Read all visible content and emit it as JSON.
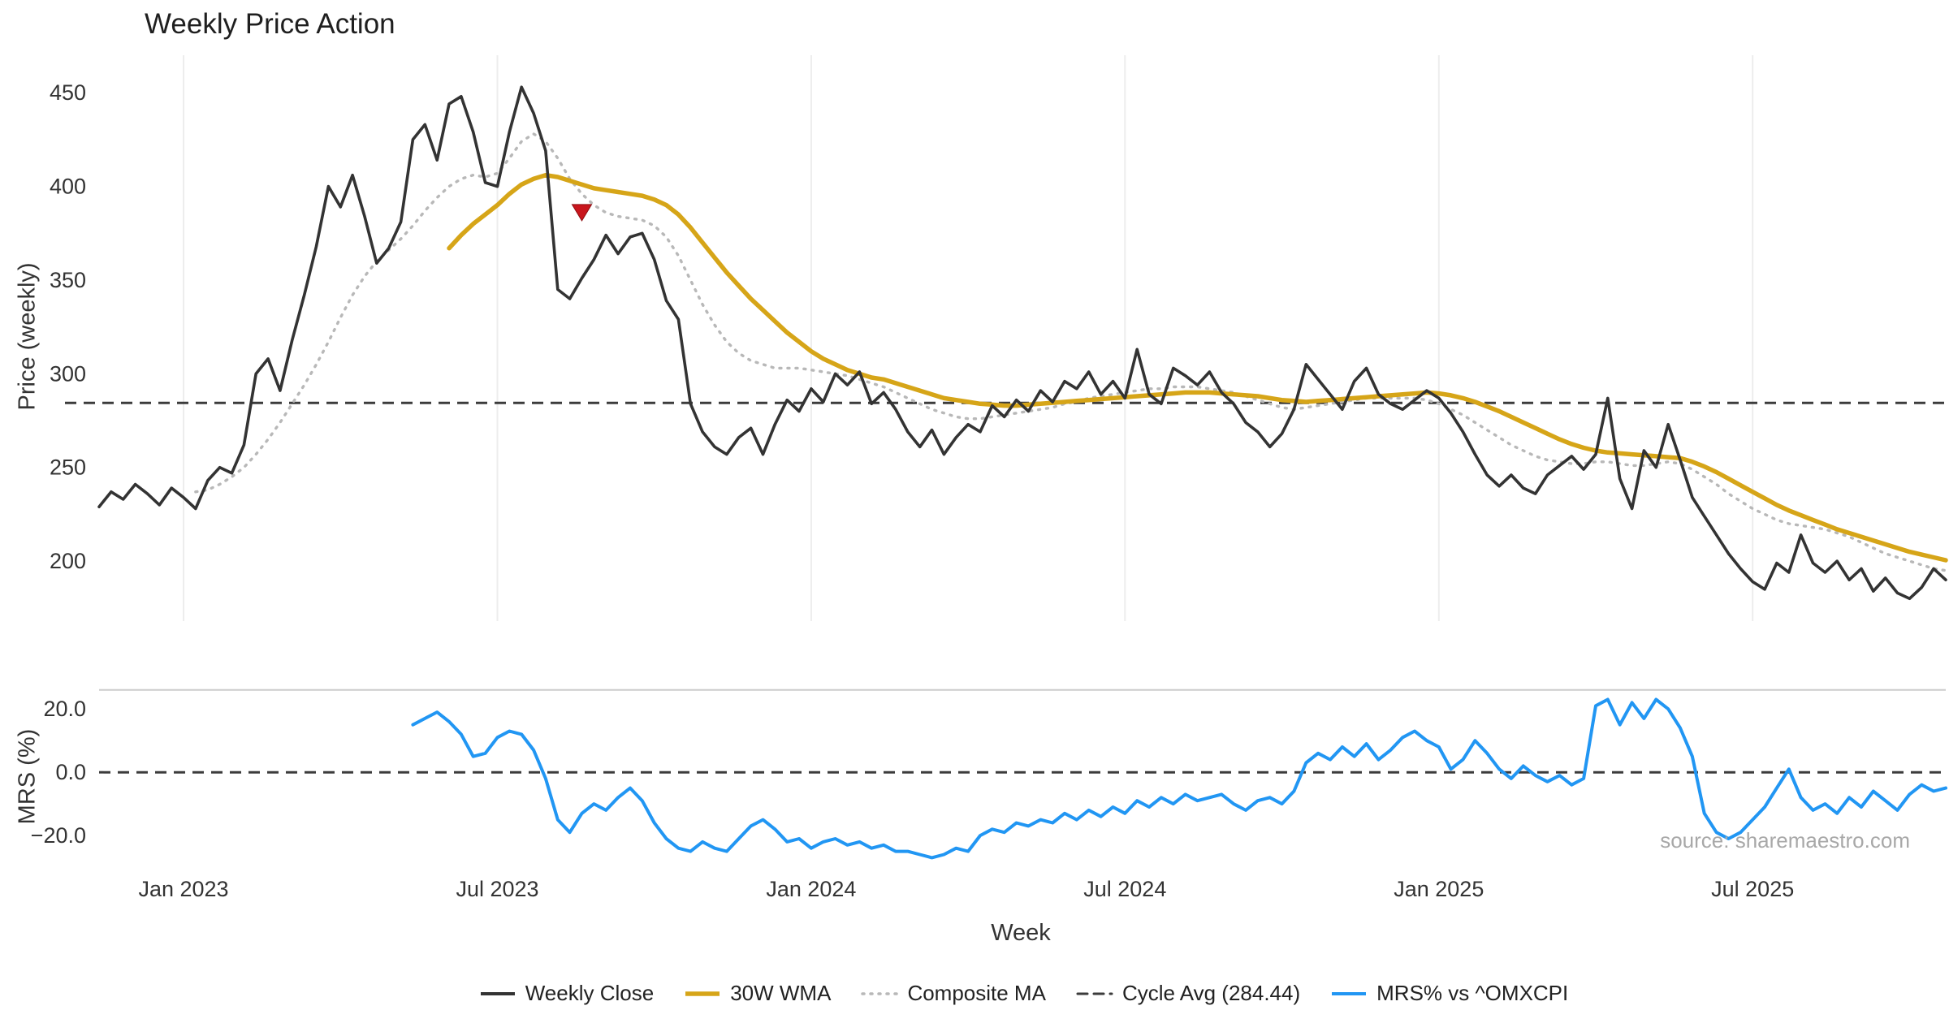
{
  "title": "Weekly Price Action",
  "source": "source: sharemaestro.com",
  "axes": {
    "price_label": "Price (weekly)",
    "mrs_label": "MRS (%)",
    "x_label": "Week"
  },
  "colors": {
    "grid": "#ededed",
    "tick": "#333333",
    "panel_top_line": "#cccccc",
    "background": "#ffffff"
  },
  "legend": {
    "items": [
      {
        "label": "Weekly Close",
        "color": "#333333",
        "dash": "",
        "width": 4
      },
      {
        "label": "30W WMA",
        "color": "#d6a518",
        "dash": "",
        "width": 5.5
      },
      {
        "label": "Composite MA",
        "color": "#b8b8b8",
        "dash": "2 8",
        "width": 3.5
      },
      {
        "label": "Cycle Avg (284.44)",
        "color": "#3c3c3c",
        "dash": "12 8",
        "width": 3
      },
      {
        "label": "MRS% vs ^OMXCPI",
        "color": "#2196f3",
        "dash": "",
        "width": 4
      }
    ]
  },
  "chart_data": {
    "type": "line",
    "title": "Weekly Price Action",
    "xlabel": "Week",
    "ylabel_top": "Price (weekly)",
    "ylabel_bottom": "MRS (%)",
    "weeks_total": 154,
    "x_ticks": [
      {
        "week": 7,
        "label": "Jan 2023"
      },
      {
        "week": 33,
        "label": "Jul 2023"
      },
      {
        "week": 59,
        "label": "Jan 2024"
      },
      {
        "week": 85,
        "label": "Jul 2024"
      },
      {
        "week": 111,
        "label": "Jan 2025"
      },
      {
        "week": 137,
        "label": "Jul 2025"
      }
    ],
    "price_axis": {
      "ticks": [
        450,
        400,
        350,
        300,
        250,
        200
      ],
      "range": [
        168,
        470
      ]
    },
    "mrs_axis": {
      "ticks": [
        {
          "value": 20,
          "label": "20.0"
        },
        {
          "value": 0,
          "label": "0.0"
        },
        {
          "value": -20,
          "label": "−20.0"
        }
      ],
      "range": [
        -31,
        28
      ]
    },
    "cycle_avg": 284.44,
    "marker": {
      "week": 40,
      "value": 386,
      "shape": "triangle-down",
      "color": "#c9161d"
    },
    "series": [
      {
        "name": "Weekly Close",
        "panel": "price",
        "color": "#333333",
        "width": 3.6,
        "dash": "",
        "start": 0,
        "values": [
          229,
          237,
          233,
          241,
          236,
          230,
          239,
          234,
          228,
          243,
          250,
          247,
          262,
          300,
          308,
          291,
          318,
          342,
          368,
          400,
          389,
          406,
          384,
          359,
          367,
          381,
          425,
          433,
          414,
          444,
          448,
          429,
          402,
          400,
          429,
          453,
          439,
          419,
          345,
          340,
          351,
          361,
          374,
          364,
          373,
          375,
          361,
          339,
          329,
          284,
          269,
          261,
          257,
          266,
          271,
          257,
          273,
          286,
          280,
          292,
          285,
          300,
          294,
          301,
          284,
          290,
          281,
          269,
          261,
          270,
          257,
          266,
          273,
          269,
          283,
          277,
          286,
          280,
          291,
          285,
          296,
          292,
          301,
          289,
          296,
          287,
          313,
          289,
          284,
          303,
          299,
          294,
          301,
          290,
          284,
          274,
          269,
          261,
          268,
          281,
          305,
          297,
          289,
          281,
          296,
          303,
          289,
          284,
          281,
          286,
          291,
          287,
          279,
          269,
          257,
          246,
          240,
          246,
          239,
          236,
          246,
          251,
          256,
          249,
          257,
          287,
          244,
          228,
          259,
          250,
          273,
          254,
          234,
          224,
          214,
          204,
          196,
          189,
          185,
          199,
          194,
          214,
          199,
          194,
          200,
          190,
          196,
          184,
          191,
          183,
          180,
          186,
          196,
          190
        ]
      },
      {
        "name": "30W WMA",
        "panel": "price",
        "color": "#d6a518",
        "width": 5.5,
        "dash": "",
        "start": 29,
        "values": [
          367,
          374,
          380,
          385,
          390,
          396,
          401,
          404,
          406,
          405,
          403,
          401,
          399,
          398,
          397,
          396,
          395,
          393,
          390,
          385,
          378,
          370,
          362,
          354,
          347,
          340,
          334,
          328,
          322,
          317,
          312,
          308,
          305,
          302,
          300,
          298,
          297,
          295,
          293,
          291,
          289,
          287,
          286,
          285,
          284,
          283.5,
          283,
          283,
          283.5,
          284,
          284.5,
          285,
          285.5,
          286,
          286.5,
          287,
          287.5,
          288,
          288.5,
          289,
          289.5,
          290,
          290,
          290,
          289.5,
          289,
          288.5,
          288,
          287,
          286,
          285.5,
          285,
          285.5,
          286,
          286.5,
          287,
          287.5,
          288,
          288.5,
          289,
          289.5,
          290,
          289.5,
          288.5,
          287,
          285,
          282.5,
          280,
          277,
          274,
          271,
          268,
          265,
          262.5,
          260.5,
          259,
          258,
          257.5,
          257,
          256.5,
          256,
          255.5,
          255,
          253,
          250.5,
          247.5,
          244,
          240.5,
          237,
          233.5,
          230,
          227,
          224.5,
          222,
          219.5,
          217,
          215,
          213,
          211,
          209,
          207,
          205,
          203.5,
          202,
          200.5
        ]
      },
      {
        "name": "Composite MA",
        "panel": "price",
        "color": "#b8b8b8",
        "width": 3.4,
        "dash": "2 8",
        "start": 8,
        "values": [
          237,
          238,
          241,
          245,
          250,
          257,
          265,
          274,
          284,
          294,
          305,
          317,
          330,
          342,
          352,
          360,
          366,
          372,
          379,
          387,
          394,
          400,
          404,
          406,
          405,
          407,
          415,
          424,
          428,
          424,
          415,
          404,
          396,
          390,
          386,
          384,
          383,
          382,
          379,
          373,
          363,
          350,
          337,
          326,
          317,
          311,
          307,
          305,
          303,
          303,
          303,
          302,
          301,
          300,
          299,
          297,
          295,
          293,
          290,
          287,
          284,
          281,
          279,
          277,
          276,
          276,
          277,
          278,
          279,
          280,
          281,
          282,
          284,
          285,
          287,
          288,
          289,
          290,
          291,
          292,
          292,
          293,
          293,
          293,
          292,
          291,
          290,
          288,
          286,
          284,
          282,
          281,
          282,
          283,
          284,
          285,
          286,
          287,
          287,
          287,
          287,
          287,
          286,
          284,
          281,
          278,
          274,
          270,
          266,
          262,
          259,
          256,
          254,
          253,
          252,
          252,
          253,
          253,
          252,
          251,
          251,
          252,
          253,
          252,
          249,
          245,
          241,
          236,
          232,
          228,
          225,
          222,
          220,
          219,
          218,
          217,
          215,
          213,
          210,
          207,
          204,
          202,
          200,
          198,
          196,
          195
        ]
      },
      {
        "name": "MRS% vs ^OMXCPI",
        "panel": "mrs",
        "color": "#2196f3",
        "width": 4,
        "dash": "",
        "start": 26,
        "values": [
          15,
          17,
          19,
          16,
          12,
          5,
          6,
          11,
          13,
          12,
          7,
          -2,
          -15,
          -19,
          -13,
          -10,
          -12,
          -8,
          -5,
          -9,
          -16,
          -21,
          -24,
          -25,
          -22,
          -24,
          -25,
          -21,
          -17,
          -15,
          -18,
          -22,
          -21,
          -24,
          -22,
          -21,
          -23,
          -22,
          -24,
          -23,
          -25,
          -25,
          -26,
          -27,
          -26,
          -24,
          -25,
          -20,
          -18,
          -19,
          -16,
          -17,
          -15,
          -16,
          -13,
          -15,
          -12,
          -14,
          -11,
          -13,
          -9,
          -11,
          -8,
          -10,
          -7,
          -9,
          -8,
          -7,
          -10,
          -12,
          -9,
          -8,
          -10,
          -6,
          3,
          6,
          4,
          8,
          5,
          9,
          4,
          7,
          11,
          13,
          10,
          8,
          1,
          4,
          10,
          6,
          1,
          -2,
          2,
          -1,
          -3,
          -1,
          -4,
          -2,
          21,
          23,
          15,
          22,
          17,
          23,
          20,
          14,
          5,
          -13,
          -19,
          -21,
          -19,
          -15,
          -11,
          -5,
          1,
          -8,
          -12,
          -10,
          -13,
          -8,
          -11,
          -6,
          -9,
          -12,
          -7,
          -4,
          -6,
          -5
        ]
      }
    ],
    "legend_entries": [
      "Weekly Close",
      "30W WMA",
      "Composite MA",
      "Cycle Avg (284.44)",
      "MRS% vs ^OMXCPI"
    ],
    "grid": "vertical-light-top-panel-only",
    "legend_position": "bottom-center"
  }
}
